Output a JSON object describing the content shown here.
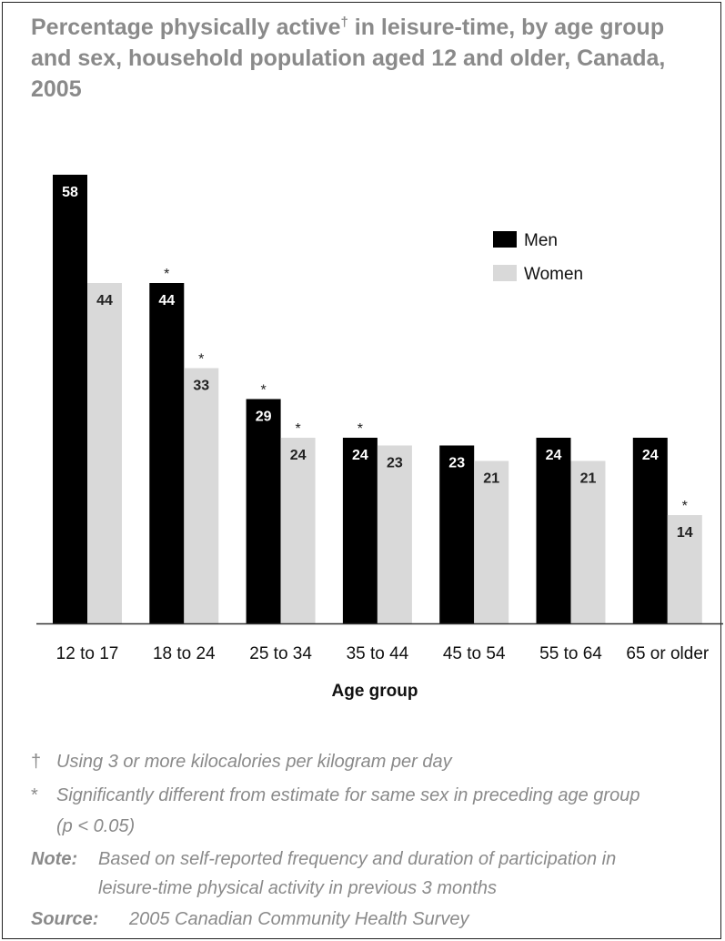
{
  "title": {
    "line1_before": "Percentage physically active",
    "dagger": "†",
    "line1_after": " in leisure-time, by age group",
    "line2": "and sex, household population aged 12 and older, Canada,",
    "line3": "2005"
  },
  "chart_data": {
    "type": "bar",
    "title": "Percentage physically active† in leisure-time, by age group and sex, household population aged 12 and older, Canada, 2005",
    "xlabel": "Age group",
    "ylabel": "",
    "ylim": [
      0,
      58
    ],
    "categories": [
      "12 to 17",
      "18 to 24",
      "25 to 34",
      "35 to 44",
      "45 to 54",
      "55 to 64",
      "65 or older"
    ],
    "series": [
      {
        "name": "Men",
        "color": "#000000",
        "values": [
          58,
          44,
          29,
          24,
          23,
          24,
          24
        ],
        "significant": [
          false,
          true,
          true,
          true,
          false,
          false,
          false
        ]
      },
      {
        "name": "Women",
        "color": "#d9d9d9",
        "values": [
          44,
          33,
          24,
          23,
          21,
          21,
          14
        ],
        "significant": [
          false,
          true,
          true,
          false,
          false,
          false,
          true
        ]
      }
    ],
    "significance_marker": "*",
    "legend_position": "top-right",
    "grid": false
  },
  "footnotes": {
    "dagger_mark": "†",
    "dagger_text": "Using 3 or more kilocalories per kilogram per day",
    "star_mark": "*",
    "star_text_line1": "Significantly different from estimate for same sex in preceding age group",
    "star_text_line2": "(p < 0.05)",
    "note_label": "Note:",
    "note_line1": "Based on self-reported frequency and duration of participation in",
    "note_line2": "leisure-time physical activity in previous 3 months",
    "source_label": "Source:",
    "source_text": "2005 Canadian Community Health Survey"
  }
}
